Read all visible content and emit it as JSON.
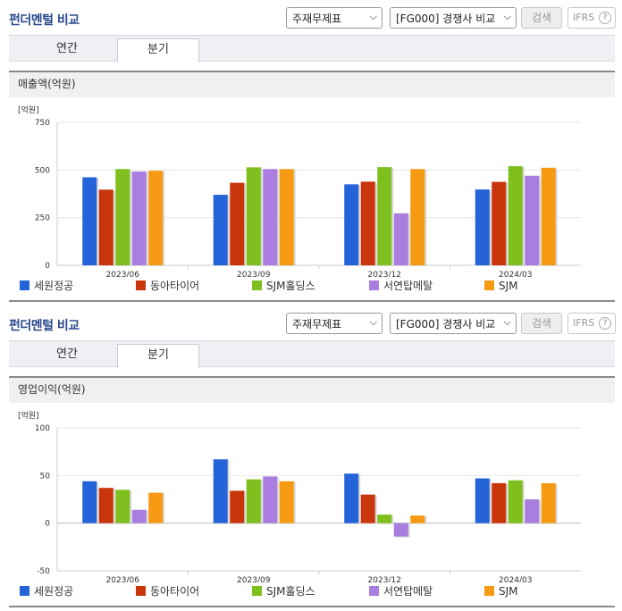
{
  "colors": {
    "series": [
      "#2563d9",
      "#c9360c",
      "#7fbf1e",
      "#a97ee0",
      "#f59a12"
    ],
    "grid": "#e6e6e6",
    "axis": "#999999"
  },
  "sections": [
    {
      "title": "펀더멘털 비교",
      "select_report": "주재무제표",
      "select_compare": "[FG000] 경쟁사 비교",
      "search_label": "검색",
      "ifrs_label": "IFRS",
      "help_label": "?",
      "tabs": [
        "연간",
        "분기"
      ],
      "active_tab": "분기",
      "metric_label": "매출액(억원)",
      "legend": [
        "세원정공",
        "동아타이어",
        "SJM홀딩스",
        "서연탑메탈",
        "SJM"
      ],
      "chart_data": {
        "type": "bar",
        "unit_label": "[억원]",
        "categories": [
          "2023/06",
          "2023/09",
          "2023/12",
          "2024/03"
        ],
        "ylim": [
          0,
          750
        ],
        "yticks": [
          0,
          250,
          500,
          750
        ],
        "grid": true,
        "legend_position": "bottom",
        "series": [
          {
            "name": "세원정공",
            "values": [
              462,
              370,
              425,
              398
            ]
          },
          {
            "name": "동아타이어",
            "values": [
              397,
              433,
              439,
              438
            ]
          },
          {
            "name": "SJM홀딩스",
            "values": [
              505,
              514,
              515,
              520
            ]
          },
          {
            "name": "서연탑메탈",
            "values": [
              492,
              505,
              273,
              470
            ]
          },
          {
            "name": "SJM",
            "values": [
              496,
              505,
              505,
              512
            ]
          }
        ]
      }
    },
    {
      "title": "펀더멘털 비교",
      "select_report": "주재무제표",
      "select_compare": "[FG000] 경쟁사 비교",
      "search_label": "검색",
      "ifrs_label": "IFRS",
      "help_label": "?",
      "tabs": [
        "연간",
        "분기"
      ],
      "active_tab": "분기",
      "metric_label": "영업이익(억원)",
      "legend": [
        "세원정공",
        "동아타이어",
        "SJM홀딩스",
        "서연탑메탈",
        "SJM"
      ],
      "chart_data": {
        "type": "bar",
        "unit_label": "[억원]",
        "categories": [
          "2023/06",
          "2023/09",
          "2023/12",
          "2024/03"
        ],
        "ylim": [
          -50,
          100
        ],
        "yticks": [
          -50,
          0,
          50,
          100
        ],
        "grid": true,
        "legend_position": "bottom",
        "series": [
          {
            "name": "세원정공",
            "values": [
              44,
              67,
              52,
              47
            ]
          },
          {
            "name": "동아타이어",
            "values": [
              37,
              34,
              30,
              42
            ]
          },
          {
            "name": "SJM홀딩스",
            "values": [
              35,
              46,
              9,
              45
            ]
          },
          {
            "name": "서연탑메탈",
            "values": [
              14,
              49,
              -14,
              25
            ]
          },
          {
            "name": "SJM",
            "values": [
              32,
              44,
              8,
              42
            ]
          }
        ]
      }
    }
  ]
}
